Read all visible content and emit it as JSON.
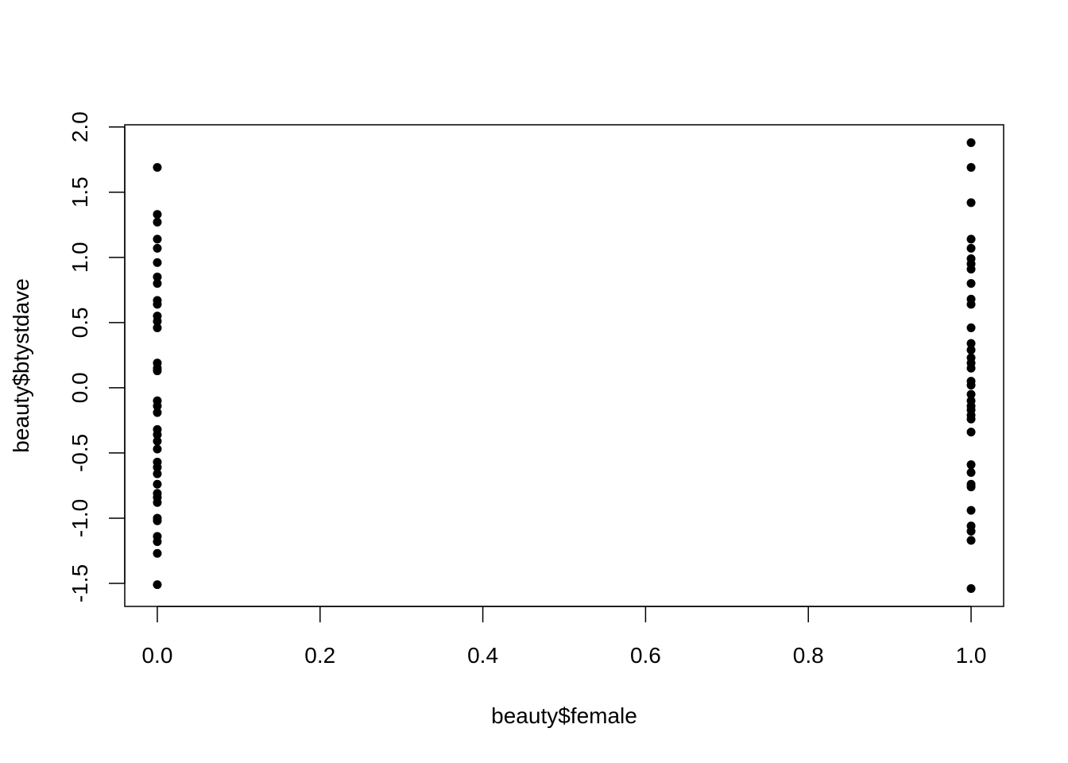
{
  "chart_data": {
    "type": "scatter",
    "x_label": "beauty$female",
    "y_label": "beauty$btystdave",
    "color": "#000000",
    "x": [
      0,
      0,
      0,
      0,
      0,
      0,
      0,
      0,
      0,
      0,
      0,
      0,
      0,
      0,
      0,
      0,
      0,
      0,
      0,
      0,
      0,
      0,
      0,
      0,
      0,
      0,
      0,
      0,
      0,
      0,
      0,
      0,
      0,
      0,
      0,
      0,
      1,
      1,
      1,
      1,
      1,
      1,
      1,
      1,
      1,
      1,
      1,
      1,
      1,
      1,
      1,
      1,
      1,
      1,
      1,
      1,
      1,
      1,
      1,
      1,
      1,
      1,
      1,
      1,
      1,
      1,
      1,
      1,
      1,
      1,
      1
    ],
    "y": [
      1.69,
      1.33,
      1.27,
      1.14,
      1.07,
      0.96,
      0.85,
      0.8,
      0.67,
      0.64,
      0.55,
      0.51,
      0.46,
      0.19,
      0.15,
      0.13,
      -0.1,
      -0.14,
      -0.19,
      -0.32,
      -0.36,
      -0.41,
      -0.47,
      -0.57,
      -0.61,
      -0.66,
      -0.74,
      -0.81,
      -0.84,
      -0.88,
      -1.0,
      -1.02,
      -1.14,
      -1.18,
      -1.27,
      -1.51,
      1.88,
      1.69,
      1.42,
      1.14,
      1.07,
      0.99,
      0.95,
      0.91,
      0.8,
      0.68,
      0.64,
      0.46,
      0.34,
      0.29,
      0.23,
      0.19,
      0.15,
      0.05,
      0.02,
      -0.05,
      -0.1,
      -0.14,
      -0.17,
      -0.21,
      -0.24,
      -0.34,
      -0.59,
      -0.65,
      -0.74,
      -0.76,
      -0.94,
      -1.06,
      -1.1,
      -1.17,
      -1.54
    ],
    "xlim": [
      -0.04,
      1.04
    ],
    "ylim": [
      -1.677,
      2.017
    ],
    "xticks": [
      {
        "value": 0,
        "label": "0.0"
      },
      0.2,
      0.4,
      0.6,
      0.8,
      {
        "value": 1,
        "label": "1.0"
      }
    ],
    "yticks": [
      -1.5,
      {
        "value": -1,
        "label": "-1.0"
      },
      -0.5,
      {
        "value": 0,
        "label": "0.0"
      },
      0.5,
      {
        "value": 1,
        "label": "1.0"
      },
      1.5,
      {
        "value": 2,
        "label": "2.0"
      }
    ]
  }
}
